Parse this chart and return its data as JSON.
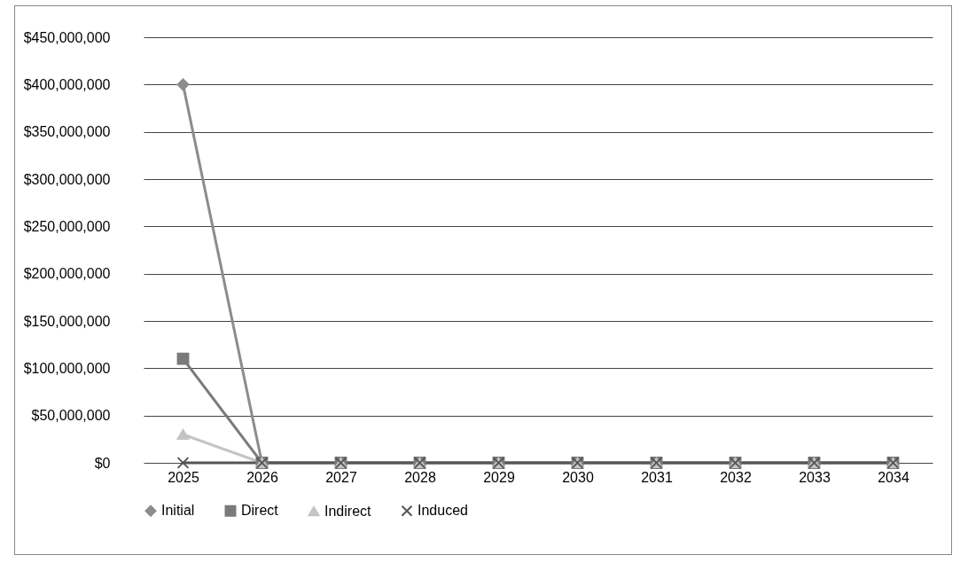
{
  "chart_data": {
    "type": "line",
    "categories": [
      "2025",
      "2026",
      "2027",
      "2028",
      "2029",
      "2030",
      "2031",
      "2032",
      "2033",
      "2034"
    ],
    "series": [
      {
        "name": "Initial",
        "color": "#8c8c8c",
        "marker": "diamond",
        "values": [
          400000000,
          0,
          0,
          0,
          0,
          0,
          0,
          0,
          0,
          0
        ]
      },
      {
        "name": "Direct",
        "color": "#7a7a7a",
        "marker": "square",
        "values": [
          110000000,
          0,
          0,
          0,
          0,
          0,
          0,
          0,
          0,
          0
        ]
      },
      {
        "name": "Indirect",
        "color": "#c4c4c4",
        "marker": "triangle",
        "values": [
          30000000,
          0,
          0,
          0,
          0,
          0,
          0,
          0,
          0,
          0
        ]
      },
      {
        "name": "Induced",
        "color": "#555555",
        "marker": "cross",
        "values": [
          0,
          0,
          0,
          0,
          0,
          0,
          0,
          0,
          0,
          0
        ]
      }
    ],
    "ylim": [
      0,
      450000000
    ],
    "yticks": [
      {
        "value": 0,
        "label": "$0"
      },
      {
        "value": 50000000,
        "label": "$50,000,000"
      },
      {
        "value": 100000000,
        "label": "$100,000,000"
      },
      {
        "value": 150000000,
        "label": "$150,000,000"
      },
      {
        "value": 200000000,
        "label": "$200,000,000"
      },
      {
        "value": 250000000,
        "label": "$250,000,000"
      },
      {
        "value": 300000000,
        "label": "$300,000,000"
      },
      {
        "value": 350000000,
        "label": "$350,000,000"
      },
      {
        "value": 400000000,
        "label": "$400,000,000"
      },
      {
        "value": 450000000,
        "label": "$450,000,000"
      }
    ],
    "grid": "y",
    "legend": "bottom",
    "line_style": "solid"
  }
}
